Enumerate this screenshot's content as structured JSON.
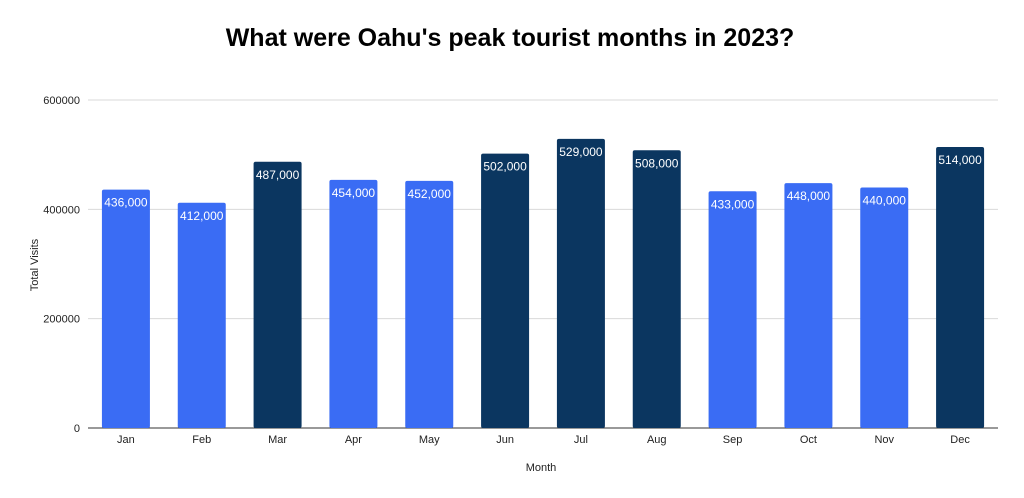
{
  "chart_data": {
    "type": "bar",
    "title": "What were Oahu's peak tourist months in 2023?",
    "xlabel": "Month",
    "ylabel": "Total Visits",
    "ylim": [
      0,
      600000
    ],
    "yticks": [
      0,
      200000,
      400000,
      600000
    ],
    "grid": true,
    "legend": "none",
    "categories": [
      "Jan",
      "Feb",
      "Mar",
      "Apr",
      "May",
      "Jun",
      "Jul",
      "Aug",
      "Sep",
      "Oct",
      "Nov",
      "Dec"
    ],
    "values": [
      436000,
      412000,
      487000,
      454000,
      452000,
      502000,
      529000,
      508000,
      433000,
      448000,
      440000,
      514000
    ],
    "data_labels": [
      "436,000",
      "412,000",
      "487,000",
      "454,000",
      "452,000",
      "502,000",
      "529,000",
      "508,000",
      "433,000",
      "448,000",
      "440,000",
      "514,000"
    ],
    "bar_colors": [
      "#3a6cf4",
      "#3a6cf4",
      "#0b3660",
      "#3a6cf4",
      "#3a6cf4",
      "#0b3660",
      "#0b3660",
      "#0b3660",
      "#3a6cf4",
      "#3a6cf4",
      "#3a6cf4",
      "#0b3660"
    ]
  }
}
